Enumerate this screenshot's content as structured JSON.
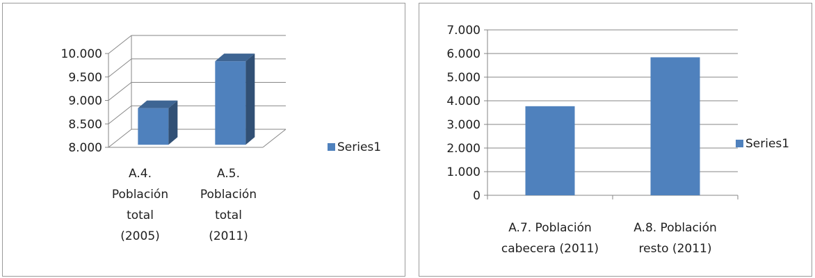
{
  "chart_data": [
    {
      "type": "bar",
      "style": "3d-column",
      "categories": [
        [
          "A.4.",
          "Población",
          "total",
          "(2005)"
        ],
        [
          "A.5.",
          "Población",
          "total",
          "(2011)"
        ]
      ],
      "series": [
        {
          "name": "Series1",
          "values": [
            8780,
            9780
          ],
          "color": "#4F81BD"
        }
      ],
      "ylim": [
        8000,
        10000
      ],
      "ytick_labels": [
        "8.000",
        "8.500",
        "9.000",
        "9.500",
        "10.000"
      ],
      "grid": true,
      "legend_position": "right"
    },
    {
      "type": "bar",
      "categories": [
        [
          "A.7. Población",
          "cabecera (2011)"
        ],
        [
          "A.8. Población",
          "resto (2011)"
        ]
      ],
      "series": [
        {
          "name": "Series1",
          "values": [
            3770,
            5840
          ],
          "color": "#4F81BD"
        }
      ],
      "ylim": [
        0,
        7000
      ],
      "ytick_labels": [
        "0",
        "1.000",
        "2.000",
        "3.000",
        "4.000",
        "5.000",
        "6.000",
        "7.000"
      ],
      "grid": true,
      "legend_position": "right"
    }
  ]
}
